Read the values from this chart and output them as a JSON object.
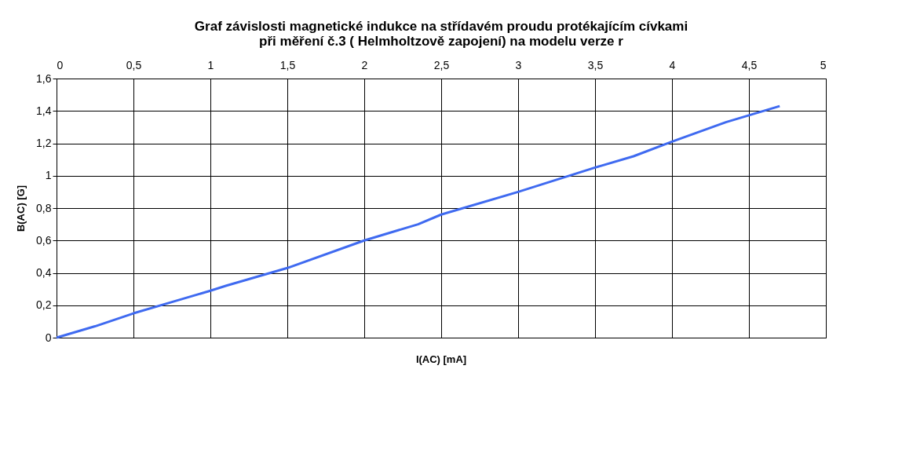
{
  "chart_data": {
    "type": "line",
    "title": [
      "Graf závislosti magnetické indukce na střídavém proudu protékajícím cívkami",
      "při měření č.3 ( Helmholtzově zapojení) na modelu verze r"
    ],
    "xlabel": "I(AC) [mA]",
    "ylabel": "B(AC) [G]",
    "x": [
      0,
      0.25,
      0.5,
      0.75,
      1,
      1.1,
      1.5,
      2,
      2.35,
      2.5,
      3,
      3.5,
      3.75,
      4,
      4.35,
      4.7
    ],
    "series": [
      {
        "color": "#3f6af0",
        "values": [
          0,
          0.07,
          0.15,
          0.22,
          0.29,
          0.32,
          0.43,
          0.6,
          0.7,
          0.76,
          0.9,
          1.05,
          1.12,
          1.21,
          1.33,
          1.43
        ]
      }
    ],
    "xlim": [
      0,
      5
    ],
    "ylim": [
      0,
      1.6
    ],
    "xticks": [
      0,
      {
        "value": 0.5,
        "label": "0,5"
      },
      1,
      {
        "value": 1.5,
        "label": "1,5"
      },
      2,
      {
        "value": 2.5,
        "label": "2,5"
      },
      3,
      {
        "value": 3.5,
        "label": "3,5"
      },
      4,
      {
        "value": 4.5,
        "label": "4,5"
      },
      5
    ],
    "yticks": [
      0,
      {
        "value": 0.2,
        "label": "0,2"
      },
      {
        "value": 0.4,
        "label": "0,4"
      },
      {
        "value": 0.6,
        "label": "0,6"
      },
      {
        "value": 0.8,
        "label": "0,8"
      },
      1,
      {
        "value": 1.2,
        "label": "1,2"
      },
      {
        "value": 1.4,
        "label": "1,4"
      },
      {
        "value": 1.6,
        "label": "1,6"
      }
    ],
    "grid": true,
    "marker": "none",
    "line_style": "solid"
  }
}
